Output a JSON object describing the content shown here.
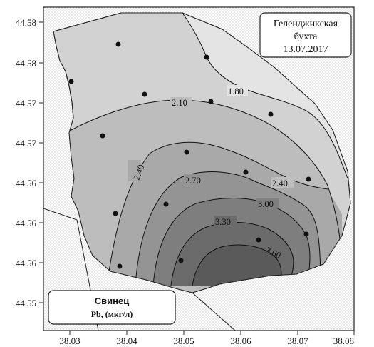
{
  "title_box": {
    "line1": "Геленджикская",
    "line2": "бухта",
    "line3": "13.07.2017"
  },
  "legend_box": {
    "line1": "Свинец",
    "line2": "Pb, (мкг/л)"
  },
  "y_ticks": [
    "44.58",
    "44.58",
    "44.57",
    "44.57",
    "44.56",
    "44.56",
    "44.56",
    "44.55"
  ],
  "x_ticks": [
    "38.03",
    "38.04",
    "38.05",
    "38.06",
    "38.07",
    "38.08"
  ],
  "isolines": [
    "1.80",
    "2.10",
    "2.40",
    "2.70",
    "2.40",
    "3.00",
    "3.30",
    "3.60"
  ],
  "colors": {
    "land_dots": "#8f8f8f",
    "frame": "#222222",
    "bay_fill_outer": "#e3e3e3",
    "bay_fill_mid": "#c9c9c9",
    "bay_fill_inner": "#9e9e9e",
    "bay_fill_core": "#6f6f6f"
  }
}
